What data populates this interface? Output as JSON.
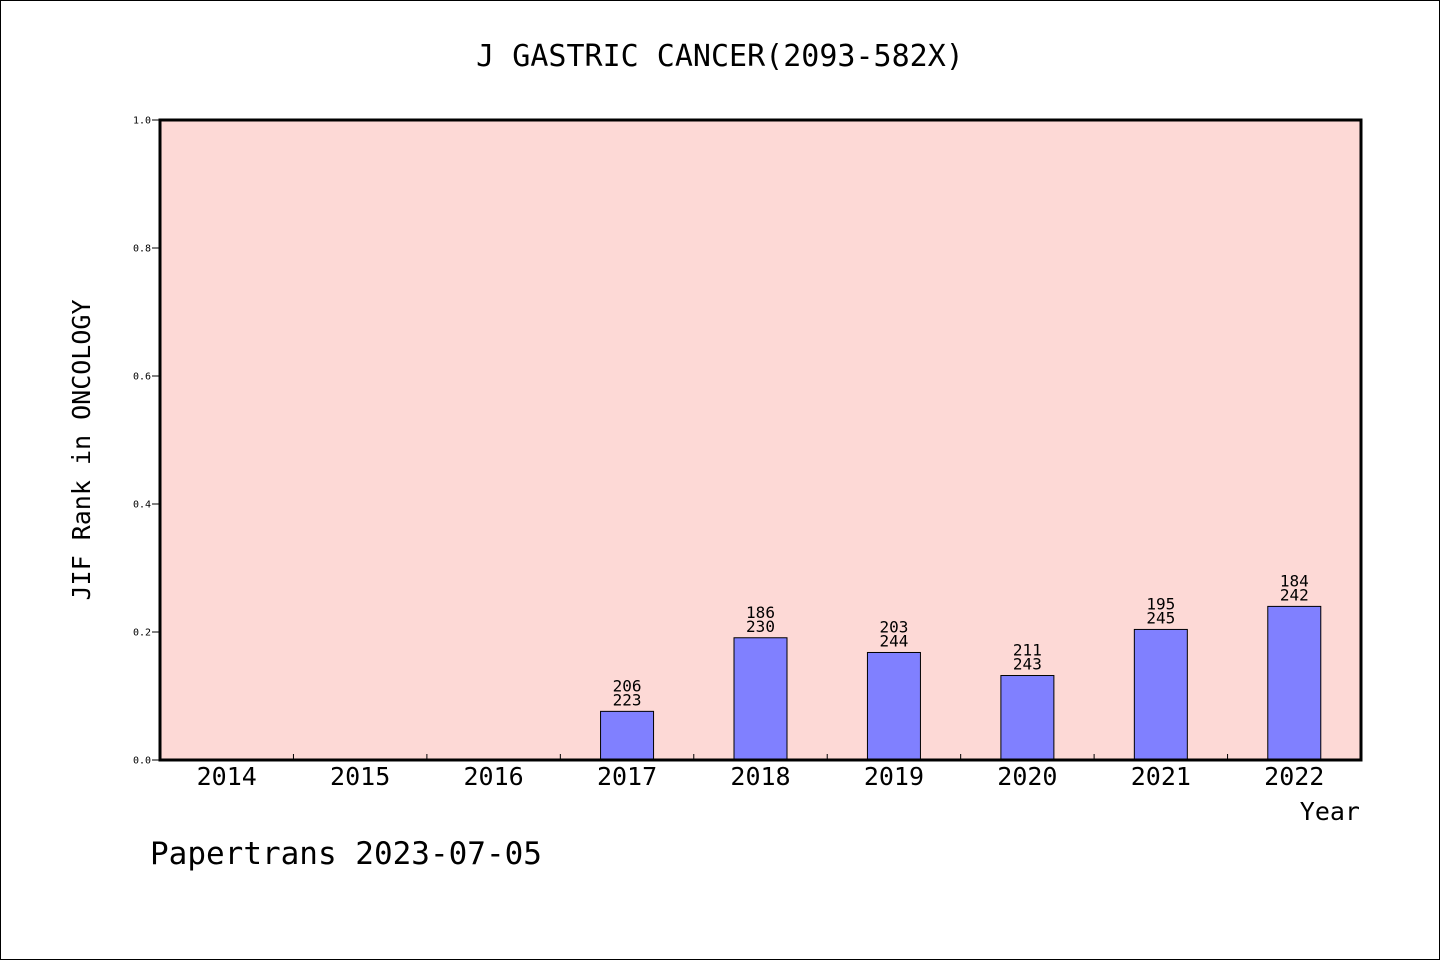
{
  "chart_data": {
    "type": "bar",
    "title": "J GASTRIC CANCER(2093-582X)",
    "xlabel": "Year",
    "ylabel": "JIF Rank in ONCOLOGY",
    "ylim": [
      0,
      1.0
    ],
    "yticks": [
      "0.0",
      "0.2",
      "0.4",
      "0.6",
      "0.8",
      "1.0"
    ],
    "categories": [
      "2014",
      "2015",
      "2016",
      "2017",
      "2018",
      "2019",
      "2020",
      "2021",
      "2022"
    ],
    "values": [
      null,
      null,
      null,
      0.076,
      0.191,
      0.168,
      0.132,
      0.204,
      0.24
    ],
    "labels": [
      null,
      null,
      null,
      [
        "206",
        "223"
      ],
      [
        "186",
        "230"
      ],
      [
        "203",
        "244"
      ],
      [
        "211",
        "243"
      ],
      [
        "195",
        "245"
      ],
      [
        "184",
        "242"
      ]
    ],
    "grid": false,
    "colors": {
      "plot_bg": "#fdd9d6",
      "bar": "#8080ff",
      "axis": "#000000"
    }
  },
  "footer": "Papertrans 2023-07-05"
}
